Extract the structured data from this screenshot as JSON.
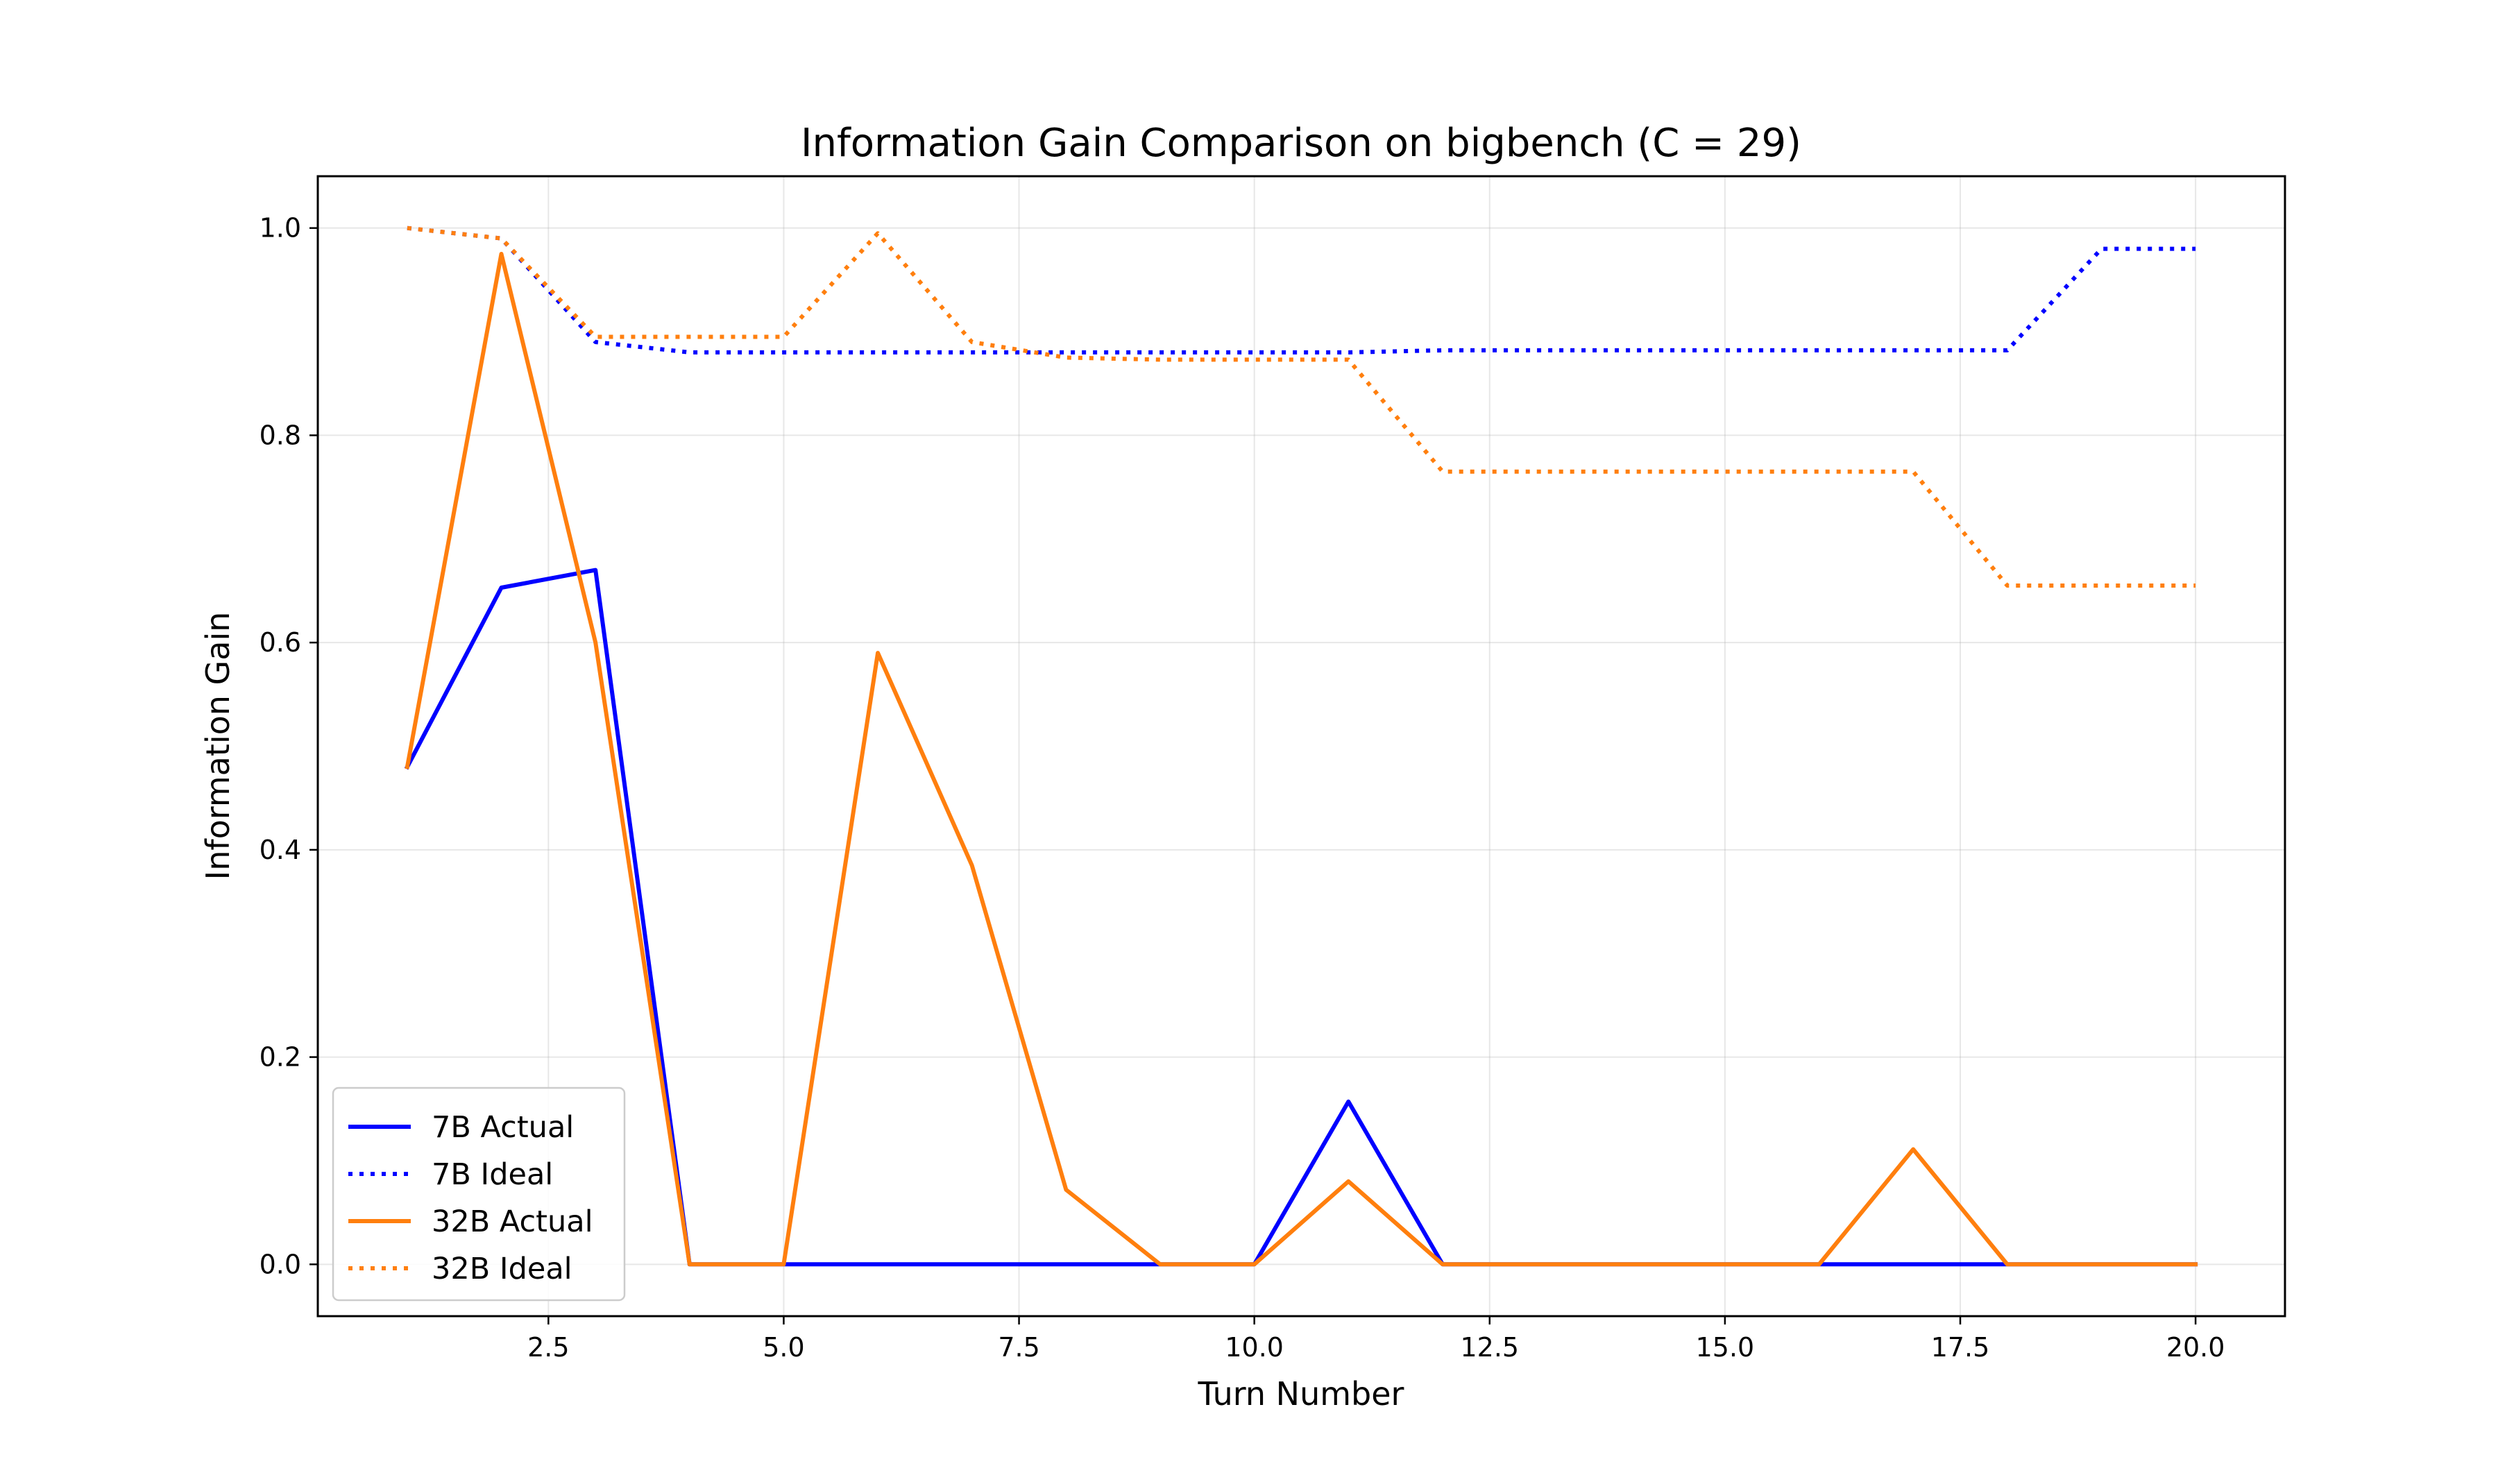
{
  "chart_data": {
    "type": "line",
    "title": "Information Gain Comparison on bigbench (C = 29)",
    "xlabel": "Turn Number",
    "ylabel": "Information Gain",
    "xlim": [
      0.05,
      20.95
    ],
    "ylim": [
      -0.05,
      1.05
    ],
    "xticks": [
      2.5,
      5.0,
      7.5,
      10.0,
      12.5,
      15.0,
      17.5,
      20.0
    ],
    "xtick_labels": [
      "2.5",
      "5.0",
      "7.5",
      "10.0",
      "12.5",
      "15.0",
      "17.5",
      "20.0"
    ],
    "yticks": [
      0.0,
      0.2,
      0.4,
      0.6,
      0.8,
      1.0
    ],
    "ytick_labels": [
      "0.0",
      "0.2",
      "0.4",
      "0.6",
      "0.8",
      "1.0"
    ],
    "grid": true,
    "legend_position": "lower-left",
    "x": [
      1,
      2,
      3,
      4,
      5,
      6,
      7,
      8,
      9,
      10,
      11,
      12,
      13,
      14,
      15,
      16,
      17,
      18,
      19,
      20
    ],
    "series": [
      {
        "name": "7B Actual",
        "color": "#0000ff",
        "style": "solid",
        "values": [
          0.48,
          0.653,
          0.67,
          0.0,
          0.0,
          0.0,
          0.0,
          0.0,
          0.0,
          0.0,
          0.157,
          0.0,
          0.0,
          0.0,
          0.0,
          0.0,
          0.0,
          0.0,
          0.0,
          0.0
        ]
      },
      {
        "name": "7B Ideal",
        "color": "#0000ff",
        "style": "dotted",
        "values": [
          1.0,
          0.99,
          0.89,
          0.88,
          0.88,
          0.88,
          0.88,
          0.88,
          0.88,
          0.88,
          0.88,
          0.882,
          0.882,
          0.882,
          0.882,
          0.882,
          0.882,
          0.882,
          0.98,
          0.98
        ]
      },
      {
        "name": "32B Actual",
        "color": "#ff7f0e",
        "style": "solid",
        "values": [
          0.48,
          0.975,
          0.6,
          0.0,
          0.0,
          0.59,
          0.385,
          0.072,
          0.0,
          0.0,
          0.08,
          0.0,
          0.0,
          0.0,
          0.0,
          0.0,
          0.111,
          0.0,
          0.0,
          0.0
        ]
      },
      {
        "name": "32B Ideal",
        "color": "#ff7f0e",
        "style": "dotted",
        "values": [
          1.0,
          0.99,
          0.895,
          0.895,
          0.895,
          0.995,
          0.89,
          0.875,
          0.873,
          0.873,
          0.873,
          0.765,
          0.765,
          0.765,
          0.765,
          0.765,
          0.765,
          0.655,
          0.655,
          0.655
        ]
      }
    ]
  }
}
